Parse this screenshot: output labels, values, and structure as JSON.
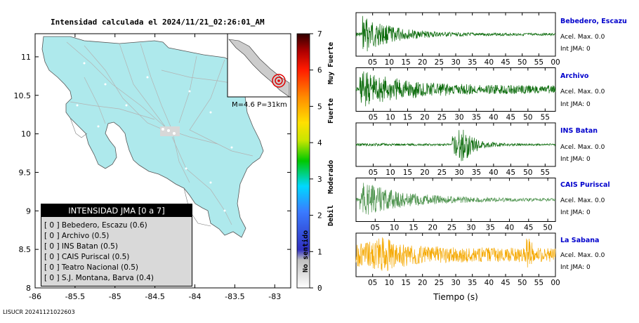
{
  "header": {
    "title": "Intensidad calculada el 2024/11/21_02:26:01_AM"
  },
  "footer": {
    "id": "LISUCR 20241121022603"
  },
  "inset": {
    "label": "M=4.6 P=31km"
  },
  "legend": {
    "title": "INTENSIDAD JMA [0 a 7]",
    "entries": [
      "[ 0 ]  Bebedero, Escazu (0.6)",
      "[ 0 ]  Archivo (0.5)",
      "[ 0 ]  INS Batan (0.5)",
      "[ 0 ]  CAIS Puriscal (0.5)",
      "[ 0 ]  Teatro Nacional (0.5)",
      "[ 0 ]  S.J. Montana, Barva (0.4)"
    ]
  },
  "colorbar": {
    "ticks": [
      "0",
      "1",
      "2",
      "3",
      "4",
      "5",
      "6",
      "7"
    ],
    "class_labels": [
      "No sentido",
      "Debil",
      "Moderado",
      "Fuerte",
      "Muy Fuerte"
    ]
  },
  "colors": {
    "land": "#aee9ec",
    "trace_green": "#0b6b0b",
    "trace_light": "#4f944f",
    "trace_orange": "#f5a800",
    "station_label": "#0000cc"
  },
  "chart_data": [
    {
      "type": "map",
      "xlabel": "",
      "ylabel": "",
      "x_ticks": [
        "-86",
        "-85.5",
        "-85",
        "-84.5",
        "-84",
        "-83.5",
        "-83"
      ],
      "y_ticks": [
        "11",
        "10.5",
        "10",
        "9.5",
        "9",
        "8.5",
        "8"
      ],
      "xlim": [
        -86,
        -82.8
      ],
      "ylim": [
        8,
        11.3
      ]
    },
    {
      "type": "line",
      "xlabel": "Tiempo (s)",
      "traces": [
        {
          "station": "Bebedero, Escazu",
          "acel_max": "Acel. Max. 0.0",
          "int_jma": "Int JMA: 0",
          "x_ticks": [
            "05",
            "10",
            "15",
            "20",
            "25",
            "30",
            "35",
            "40",
            "45",
            "50",
            "55",
            "00"
          ],
          "xlim": [
            0,
            60
          ],
          "color": "#0b6b0b"
        },
        {
          "station": "Archivo",
          "acel_max": "Acel. Max. 0.0",
          "int_jma": "Int JMA: 0",
          "x_ticks": [
            "05",
            "10",
            "15",
            "20",
            "25",
            "30",
            "35",
            "40",
            "45",
            "50",
            "55"
          ],
          "xlim": [
            0,
            58
          ],
          "color": "#0b6b0b"
        },
        {
          "station": "INS Batan",
          "acel_max": "Acel. Max. 0.0",
          "int_jma": "Int JMA: 0",
          "x_ticks": [
            "05",
            "10",
            "15",
            "20",
            "25",
            "30",
            "35",
            "40",
            "45",
            "50",
            "55"
          ],
          "xlim": [
            0,
            58
          ],
          "color": "#0b6b0b"
        },
        {
          "station": "CAIS Puriscal",
          "acel_max": "Acel. Max. 0.0",
          "int_jma": "Int JMA: 0",
          "x_ticks": [
            "05",
            "10",
            "15",
            "20",
            "25",
            "30",
            "35",
            "40",
            "45",
            "50"
          ],
          "xlim": [
            0,
            52
          ],
          "color": "#4f944f"
        },
        {
          "station": "La Sabana",
          "acel_max": "Acel. Max. 0.0",
          "int_jma": "Int JMA: 0",
          "x_ticks": [
            "05",
            "10",
            "15",
            "20",
            "25",
            "30",
            "35",
            "40",
            "45",
            "50",
            "55",
            "00"
          ],
          "xlim": [
            0,
            60
          ],
          "color": "#f5a800"
        }
      ]
    }
  ]
}
